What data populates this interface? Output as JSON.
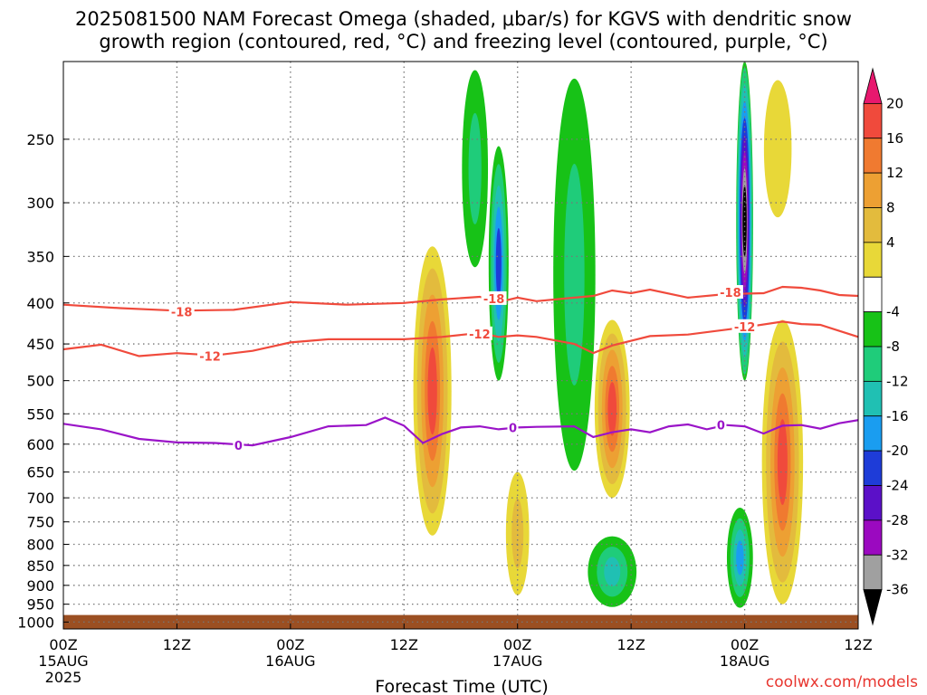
{
  "title_line1": "2025081500 NAM Forecast Omega (shaded, μbar/s) for KGVS with dendritic snow",
  "title_line2": "growth region (contoured, red, °C) and freezing level (contoured, purple, °C)",
  "credit": "coolwx.com/models",
  "colors": {
    "temp_contour": "#f04a3c",
    "freezing_contour": "#9a14c8",
    "ground": "#9b4f22",
    "grid": "#777777"
  },
  "chart_data": {
    "type": "heatmap",
    "xlabel": "Forecast Time (UTC)",
    "x_ticks": [
      {
        "hour": 0,
        "line1": "00Z",
        "line2": "15AUG",
        "line3": "2025"
      },
      {
        "hour": 12,
        "line1": "12Z",
        "line2": "",
        "line3": ""
      },
      {
        "hour": 24,
        "line1": "00Z",
        "line2": "16AUG",
        "line3": ""
      },
      {
        "hour": 36,
        "line1": "12Z",
        "line2": "",
        "line3": ""
      },
      {
        "hour": 48,
        "line1": "00Z",
        "line2": "17AUG",
        "line3": ""
      },
      {
        "hour": 60,
        "line1": "12Z",
        "line2": "",
        "line3": ""
      },
      {
        "hour": 72,
        "line1": "00Z",
        "line2": "18AUG",
        "line3": ""
      },
      {
        "hour": 84,
        "line1": "12Z",
        "line2": "",
        "line3": ""
      }
    ],
    "xlim": [
      0,
      84
    ],
    "y_ticks": [
      250,
      300,
      350,
      400,
      450,
      500,
      550,
      600,
      650,
      700,
      750,
      800,
      850,
      900,
      950,
      1000
    ],
    "ylim": [
      200,
      1020
    ],
    "y_log": true,
    "grid": true,
    "colorbar": {
      "labels": [
        20,
        16,
        12,
        8,
        4,
        -4,
        -8,
        -12,
        -16,
        -20,
        -24,
        -28,
        -32,
        -36
      ],
      "colors": [
        "#e8186e",
        "#f04a3c",
        "#f07a30",
        "#eda033",
        "#e3bb3d",
        "#e8d838",
        "#ffffff",
        "#17c217",
        "#1fcc7a",
        "#20c0b3",
        "#1a9df0",
        "#1e3cd8",
        "#5b10c8",
        "#9b09c0",
        "#a0a0a0",
        "#000000"
      ]
    },
    "contours": {
      "temp_minus18": [
        [
          0,
          402
        ],
        [
          6,
          406
        ],
        [
          12,
          409
        ],
        [
          18,
          408
        ],
        [
          24,
          399
        ],
        [
          30,
          402
        ],
        [
          36,
          400
        ],
        [
          40,
          396
        ],
        [
          44,
          393
        ],
        [
          46,
          399
        ],
        [
          48,
          394
        ],
        [
          50,
          398
        ],
        [
          54,
          394
        ],
        [
          56,
          392
        ],
        [
          58,
          386
        ],
        [
          60,
          389
        ],
        [
          62,
          385
        ],
        [
          66,
          394
        ],
        [
          70,
          390
        ],
        [
          74,
          389
        ],
        [
          76,
          382
        ],
        [
          78,
          383
        ],
        [
          80,
          386
        ],
        [
          82,
          391
        ],
        [
          84,
          392
        ]
      ],
      "temp_minus12": [
        [
          0,
          457
        ],
        [
          4,
          451
        ],
        [
          8,
          466
        ],
        [
          12,
          462
        ],
        [
          16,
          465
        ],
        [
          20,
          459
        ],
        [
          24,
          448
        ],
        [
          28,
          444
        ],
        [
          36,
          444
        ],
        [
          40,
          441
        ],
        [
          44,
          436
        ],
        [
          46,
          441
        ],
        [
          48,
          439
        ],
        [
          50,
          441
        ],
        [
          54,
          450
        ],
        [
          56,
          462
        ],
        [
          58,
          452
        ],
        [
          62,
          440
        ],
        [
          66,
          438
        ],
        [
          72,
          429
        ],
        [
          76,
          422
        ],
        [
          78,
          425
        ],
        [
          80,
          426
        ],
        [
          84,
          441
        ]
      ],
      "freezing_0": [
        [
          0,
          566
        ],
        [
          4,
          575
        ],
        [
          8,
          591
        ],
        [
          12,
          597
        ],
        [
          16,
          598
        ],
        [
          20,
          602
        ],
        [
          24,
          588
        ],
        [
          28,
          570
        ],
        [
          32,
          568
        ],
        [
          34,
          556
        ],
        [
          36,
          569
        ],
        [
          38,
          598
        ],
        [
          40,
          583
        ],
        [
          42,
          572
        ],
        [
          44,
          570
        ],
        [
          46,
          575
        ],
        [
          48,
          572
        ],
        [
          50,
          571
        ],
        [
          54,
          570
        ],
        [
          56,
          588
        ],
        [
          58,
          580
        ],
        [
          60,
          575
        ],
        [
          62,
          580
        ],
        [
          64,
          570
        ],
        [
          66,
          567
        ],
        [
          68,
          575
        ],
        [
          70,
          568
        ],
        [
          72,
          570
        ],
        [
          74,
          582
        ],
        [
          76,
          569
        ],
        [
          78,
          568
        ],
        [
          80,
          574
        ],
        [
          82,
          565
        ],
        [
          84,
          560
        ]
      ]
    },
    "contour_labels": [
      {
        "text": "-18",
        "hour": 12.5,
        "p": 410,
        "color": "temp"
      },
      {
        "text": "-18",
        "hour": 45.5,
        "p": 395,
        "color": "temp"
      },
      {
        "text": "-18",
        "hour": 70.5,
        "p": 388,
        "color": "temp"
      },
      {
        "text": "-12",
        "hour": 15.5,
        "p": 466,
        "color": "temp"
      },
      {
        "text": "-12",
        "hour": 44.0,
        "p": 437,
        "color": "temp"
      },
      {
        "text": "-12",
        "hour": 72.0,
        "p": 428,
        "color": "temp"
      },
      {
        "text": "0",
        "hour": 18.5,
        "p": 602,
        "color": "freezing"
      },
      {
        "text": "0",
        "hour": 47.5,
        "p": 572,
        "color": "freezing"
      },
      {
        "text": "0",
        "hour": 69.5,
        "p": 568,
        "color": "freezing"
      }
    ],
    "omega_features": [
      {
        "hour": 39.0,
        "p_top": 340,
        "p_bot": 780,
        "peak": 20,
        "width_h": 1.2
      },
      {
        "hour": 43.5,
        "p_top": 200,
        "p_bot": 370,
        "peak": -8,
        "width_h": 0.9
      },
      {
        "hour": 46.0,
        "p_top": 255,
        "p_bot": 500,
        "peak": -20,
        "width_h": 0.6
      },
      {
        "hour": 48.0,
        "p_top": 640,
        "p_bot": 940,
        "peak": 8,
        "width_h": 0.8
      },
      {
        "hour": 54.0,
        "p_top": 200,
        "p_bot": 680,
        "peak": -8,
        "width_h": 1.5
      },
      {
        "hour": 58.0,
        "p_top": 420,
        "p_bot": 700,
        "peak": 20,
        "width_h": 1.1
      },
      {
        "hour": 58.0,
        "p_top": 780,
        "p_bot": 960,
        "peak": -12,
        "width_h": 1.6
      },
      {
        "hour": 72.0,
        "p_top": 200,
        "p_bot": 500,
        "peak": -36,
        "width_h": 0.5
      },
      {
        "hour": 71.5,
        "p_top": 720,
        "p_bot": 960,
        "peak": -16,
        "width_h": 0.8
      },
      {
        "hour": 76.0,
        "p_top": 420,
        "p_bot": 950,
        "peak": 20,
        "width_h": 1.3
      },
      {
        "hour": 75.5,
        "p_top": 200,
        "p_bot": 330,
        "peak": 4,
        "width_h": 1.2
      }
    ],
    "surface_pressure": 980
  }
}
